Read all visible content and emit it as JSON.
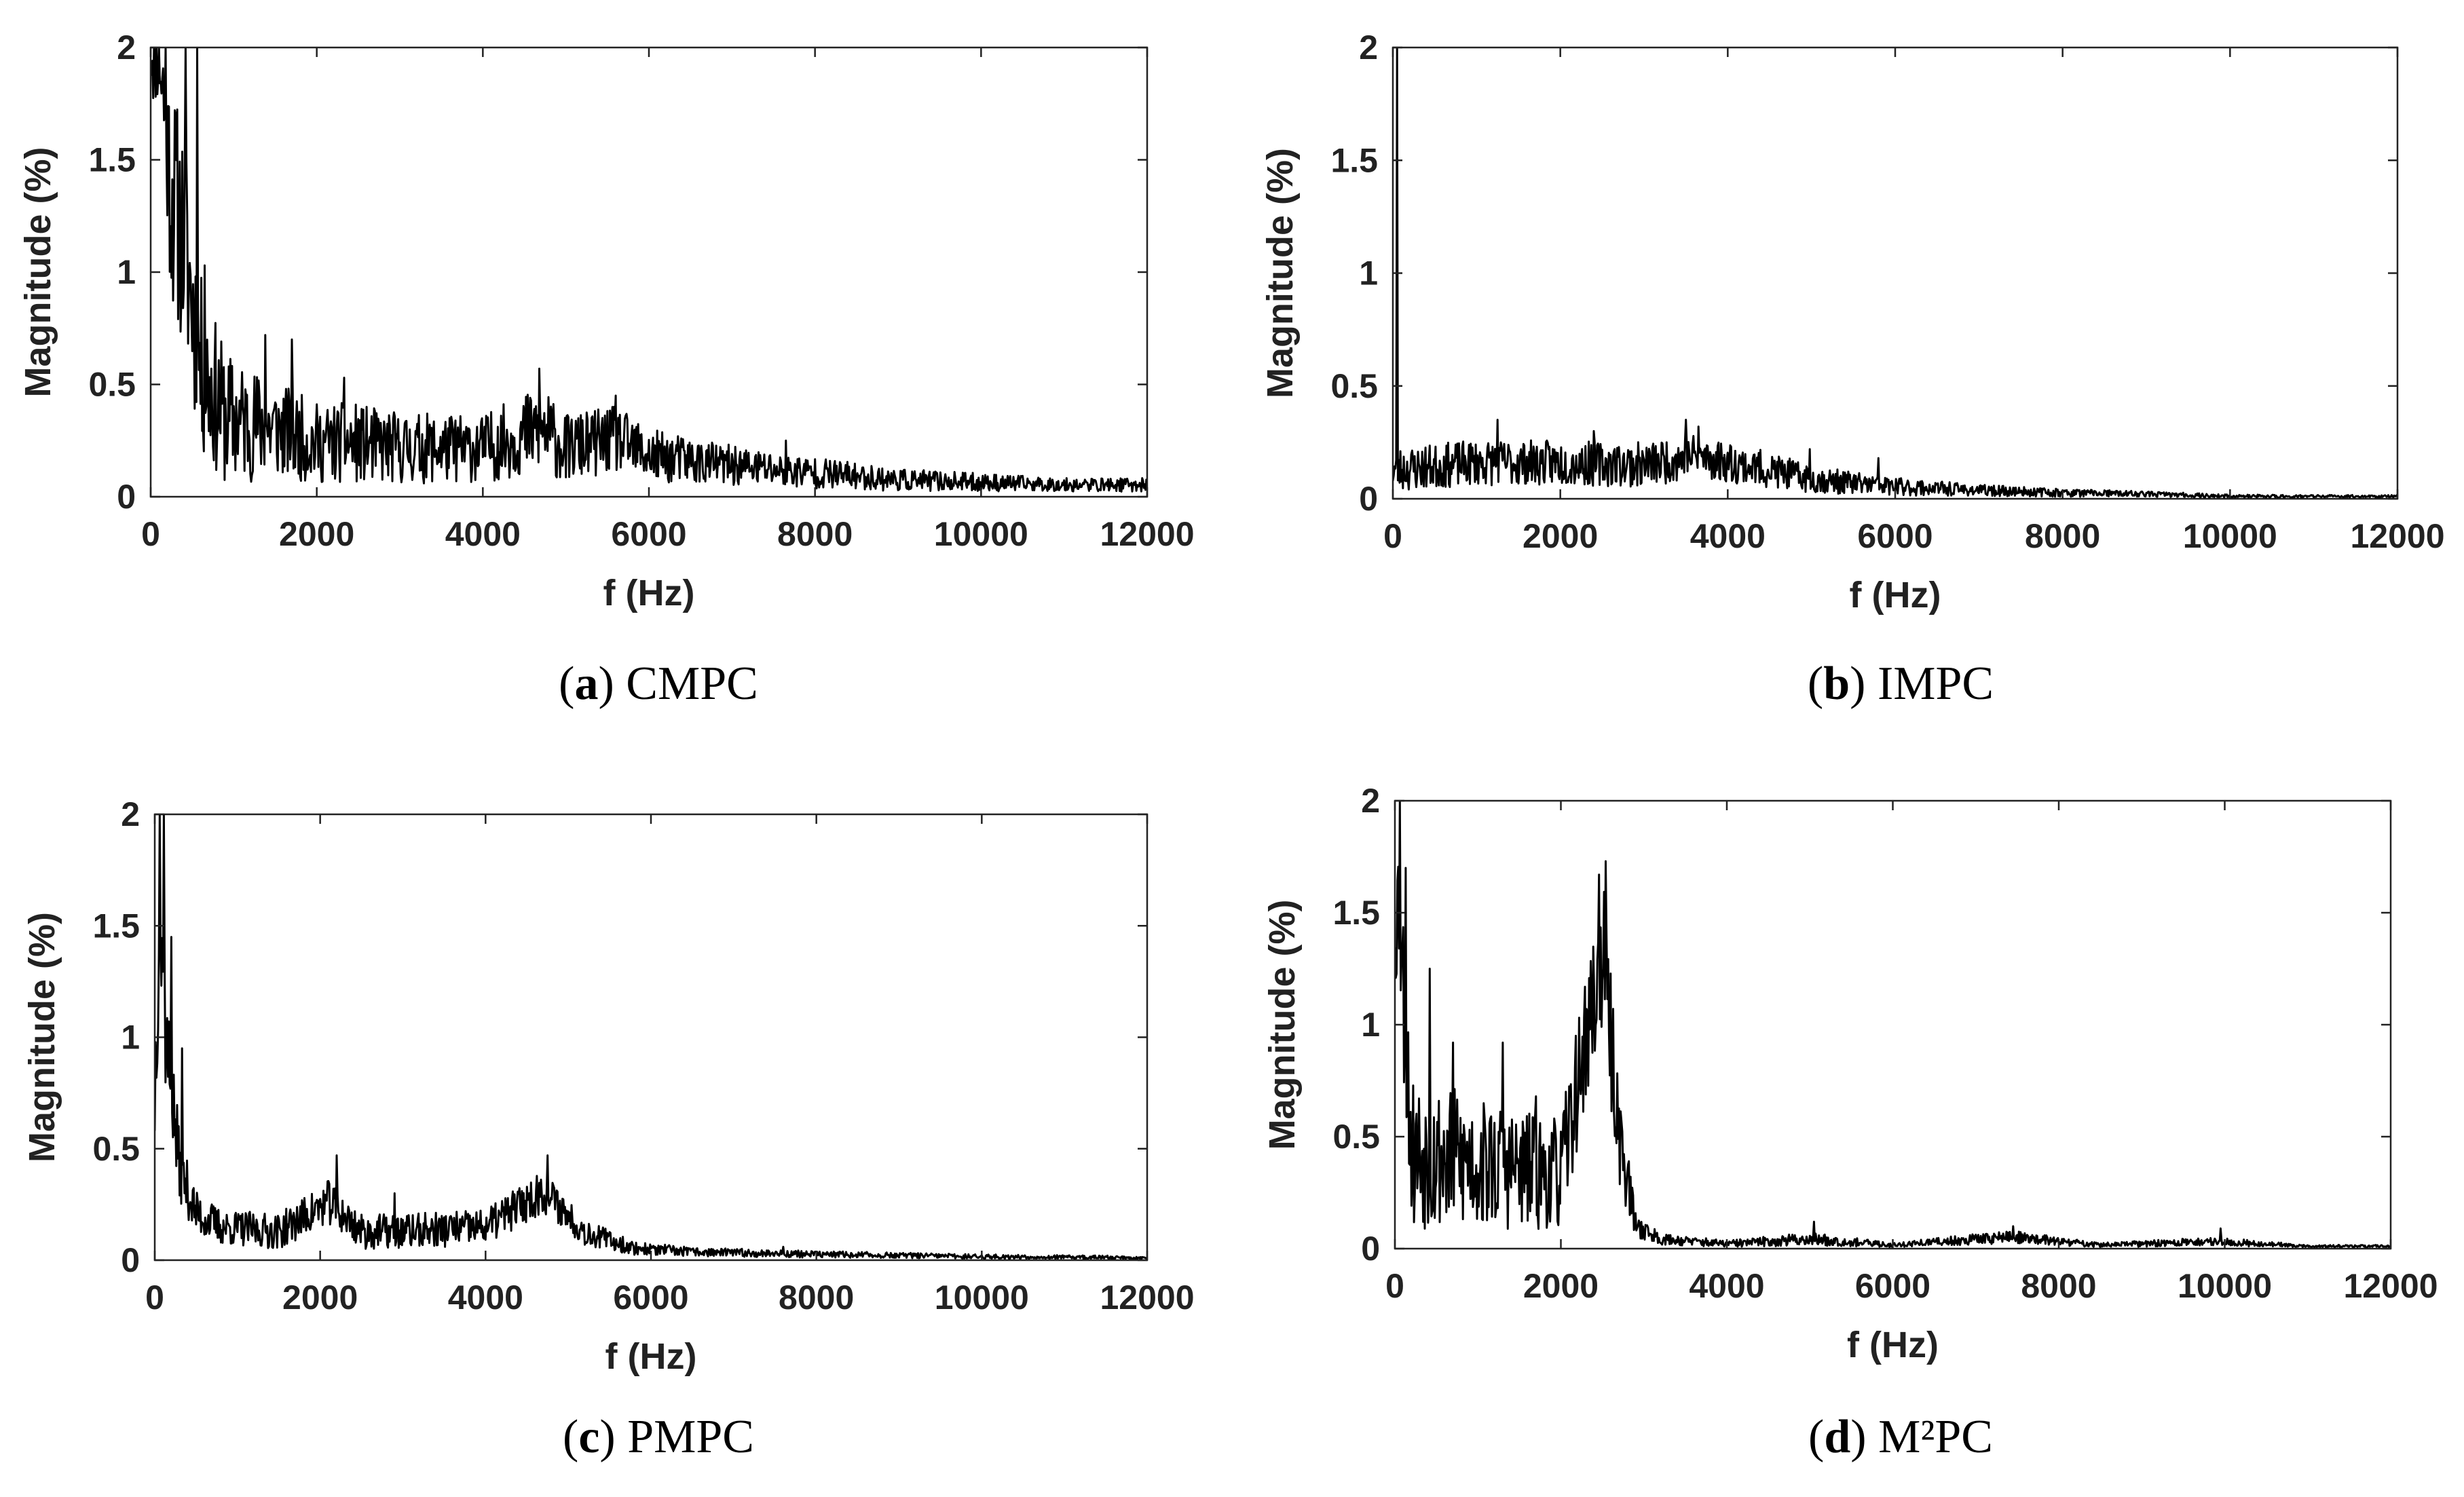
{
  "chart_data": [
    {
      "type": "line",
      "panel": "a",
      "caption_letter": "a",
      "caption_text": "CMPC",
      "xlabel": "f (Hz)",
      "ylabel": "Magnitude (%)",
      "xlim": [
        0,
        12000
      ],
      "ylim": [
        0,
        2
      ],
      "xticks": [
        0,
        2000,
        4000,
        6000,
        8000,
        10000,
        12000
      ],
      "yticks": [
        0,
        0.5,
        1,
        1.5,
        2
      ],
      "xtick_labels": [
        "0",
        "2000",
        "4000",
        "6000",
        "8000",
        "10000",
        "12000"
      ],
      "ytick_labels": [
        "0",
        "0.5",
        "1",
        "1.5",
        "2"
      ],
      "envelope": {
        "x": [
          0,
          100,
          250,
          400,
          600,
          900,
          1500,
          2000,
          2400,
          3000,
          4000,
          4700,
          5000,
          5600,
          6000,
          7000,
          8000,
          9000,
          10000,
          11000,
          12000
        ],
        "base": [
          2.0,
          2.0,
          1.3,
          1.1,
          0.55,
          0.32,
          0.28,
          0.22,
          0.22,
          0.2,
          0.2,
          0.28,
          0.2,
          0.24,
          0.17,
          0.13,
          0.1,
          0.07,
          0.06,
          0.05,
          0.05
        ],
        "noise": [
          0.3,
          0.3,
          0.5,
          0.5,
          0.4,
          0.3,
          0.22,
          0.18,
          0.18,
          0.16,
          0.15,
          0.2,
          0.15,
          0.15,
          0.12,
          0.09,
          0.07,
          0.05,
          0.04,
          0.03,
          0.03
        ]
      },
      "peaks": [
        [
          50,
          2.0
        ],
        [
          180,
          2.0
        ],
        [
          300,
          1.7
        ],
        [
          420,
          2.0
        ],
        [
          560,
          2.0
        ],
        [
          650,
          1.03
        ],
        [
          1380,
          0.72
        ],
        [
          1700,
          0.7
        ],
        [
          2330,
          0.53
        ],
        [
          4680,
          0.57
        ],
        [
          5600,
          0.45
        ],
        [
          7650,
          0.25
        ]
      ],
      "seed": 11
    },
    {
      "type": "line",
      "panel": "b",
      "caption_letter": "b",
      "caption_text": "IMPC",
      "xlabel": "f (Hz)",
      "ylabel": "Magnitude (%)",
      "xlim": [
        0,
        12000
      ],
      "ylim": [
        0,
        2
      ],
      "xticks": [
        0,
        2000,
        4000,
        6000,
        8000,
        10000,
        12000
      ],
      "yticks": [
        0,
        0.5,
        1,
        1.5,
        2
      ],
      "xtick_labels": [
        "0",
        "2000",
        "4000",
        "6000",
        "8000",
        "10000",
        "12000"
      ],
      "ytick_labels": [
        "0",
        "0.5",
        "1",
        "1.5",
        "2"
      ],
      "envelope": {
        "x": [
          0,
          100,
          1000,
          2000,
          3000,
          3600,
          4500,
          5000,
          6000,
          7000,
          8000,
          9000,
          10000,
          12000
        ],
        "base": [
          0.12,
          0.12,
          0.15,
          0.15,
          0.14,
          0.18,
          0.12,
          0.08,
          0.05,
          0.035,
          0.025,
          0.02,
          0.01,
          0.01
        ],
        "noise": [
          0.1,
          0.1,
          0.1,
          0.1,
          0.1,
          0.1,
          0.08,
          0.06,
          0.04,
          0.025,
          0.018,
          0.012,
          0.008,
          0.006
        ]
      },
      "peaks": [
        [
          50,
          2.0
        ],
        [
          1250,
          0.35
        ],
        [
          2400,
          0.3
        ],
        [
          3500,
          0.35
        ],
        [
          3650,
          0.32
        ],
        [
          4980,
          0.22
        ],
        [
          5800,
          0.18
        ]
      ],
      "seed": 23
    },
    {
      "type": "line",
      "panel": "c",
      "caption_letter": "c",
      "caption_text": "PMPC",
      "xlabel": "f (Hz)",
      "ylabel": "Magnitude (%)",
      "xlim": [
        0,
        12000
      ],
      "ylim": [
        0,
        2
      ],
      "xticks": [
        0,
        2000,
        4000,
        6000,
        8000,
        10000,
        12000
      ],
      "yticks": [
        0,
        0.5,
        1,
        1.5,
        2
      ],
      "xtick_labels": [
        "0",
        "2000",
        "4000",
        "6000",
        "8000",
        "10000",
        "12000"
      ],
      "ytick_labels": [
        "0",
        "0.5",
        "1",
        "1.5",
        "2"
      ],
      "envelope": {
        "x": [
          0,
          50,
          150,
          300,
          500,
          800,
          1500,
          2100,
          2500,
          3000,
          4000,
          4700,
          5200,
          5800,
          6500,
          8000,
          10000,
          12000
        ],
        "base": [
          0.7,
          1.5,
          0.9,
          0.4,
          0.2,
          0.14,
          0.12,
          0.25,
          0.12,
          0.12,
          0.14,
          0.3,
          0.12,
          0.05,
          0.035,
          0.025,
          0.015,
          0.01
        ],
        "noise": [
          0.3,
          0.4,
          0.3,
          0.15,
          0.1,
          0.08,
          0.08,
          0.1,
          0.08,
          0.08,
          0.08,
          0.1,
          0.06,
          0.03,
          0.02,
          0.015,
          0.01,
          0.008
        ]
      },
      "peaks": [
        [
          60,
          2.0
        ],
        [
          110,
          2.0
        ],
        [
          200,
          1.45
        ],
        [
          330,
          0.95
        ],
        [
          2200,
          0.47
        ],
        [
          2900,
          0.3
        ],
        [
          4750,
          0.47
        ],
        [
          7600,
          0.06
        ]
      ],
      "seed": 37
    },
    {
      "type": "line",
      "panel": "d",
      "caption_letter": "d",
      "caption_text": "M²PC",
      "xlabel": "f (Hz)",
      "ylabel": "Magnitude (%)",
      "xlim": [
        0,
        12000
      ],
      "ylim": [
        0,
        2
      ],
      "xticks": [
        0,
        2000,
        4000,
        6000,
        8000,
        10000,
        12000
      ],
      "yticks": [
        0,
        0.5,
        1,
        1.5,
        2
      ],
      "xtick_labels": [
        "0",
        "2000",
        "4000",
        "6000",
        "8000",
        "10000",
        "12000"
      ],
      "ytick_labels": [
        "0",
        "0.5",
        "1",
        "1.5",
        "2"
      ],
      "envelope": {
        "x": [
          0,
          50,
          200,
          1000,
          2000,
          2300,
          2500,
          2700,
          2900,
          3200,
          4000,
          5000,
          6000,
          7400,
          8500,
          9900,
          11000,
          12000
        ],
        "base": [
          1.5,
          1.5,
          0.4,
          0.35,
          0.3,
          0.9,
          1.3,
          0.5,
          0.1,
          0.04,
          0.02,
          0.04,
          0.015,
          0.05,
          0.015,
          0.03,
          0.01,
          0.01
        ],
        "noise": [
          0.4,
          0.4,
          0.35,
          0.3,
          0.25,
          0.3,
          0.35,
          0.25,
          0.06,
          0.025,
          0.015,
          0.03,
          0.01,
          0.03,
          0.01,
          0.02,
          0.006,
          0.006
        ]
      },
      "peaks": [
        [
          60,
          2.0
        ],
        [
          130,
          1.7
        ],
        [
          420,
          1.25
        ],
        [
          700,
          0.92
        ],
        [
          1300,
          0.92
        ],
        [
          1700,
          0.68
        ],
        [
          2460,
          1.67
        ],
        [
          2540,
          1.73
        ],
        [
          5050,
          0.12
        ],
        [
          7450,
          0.1
        ],
        [
          9950,
          0.09
        ]
      ],
      "seed": 53
    }
  ]
}
